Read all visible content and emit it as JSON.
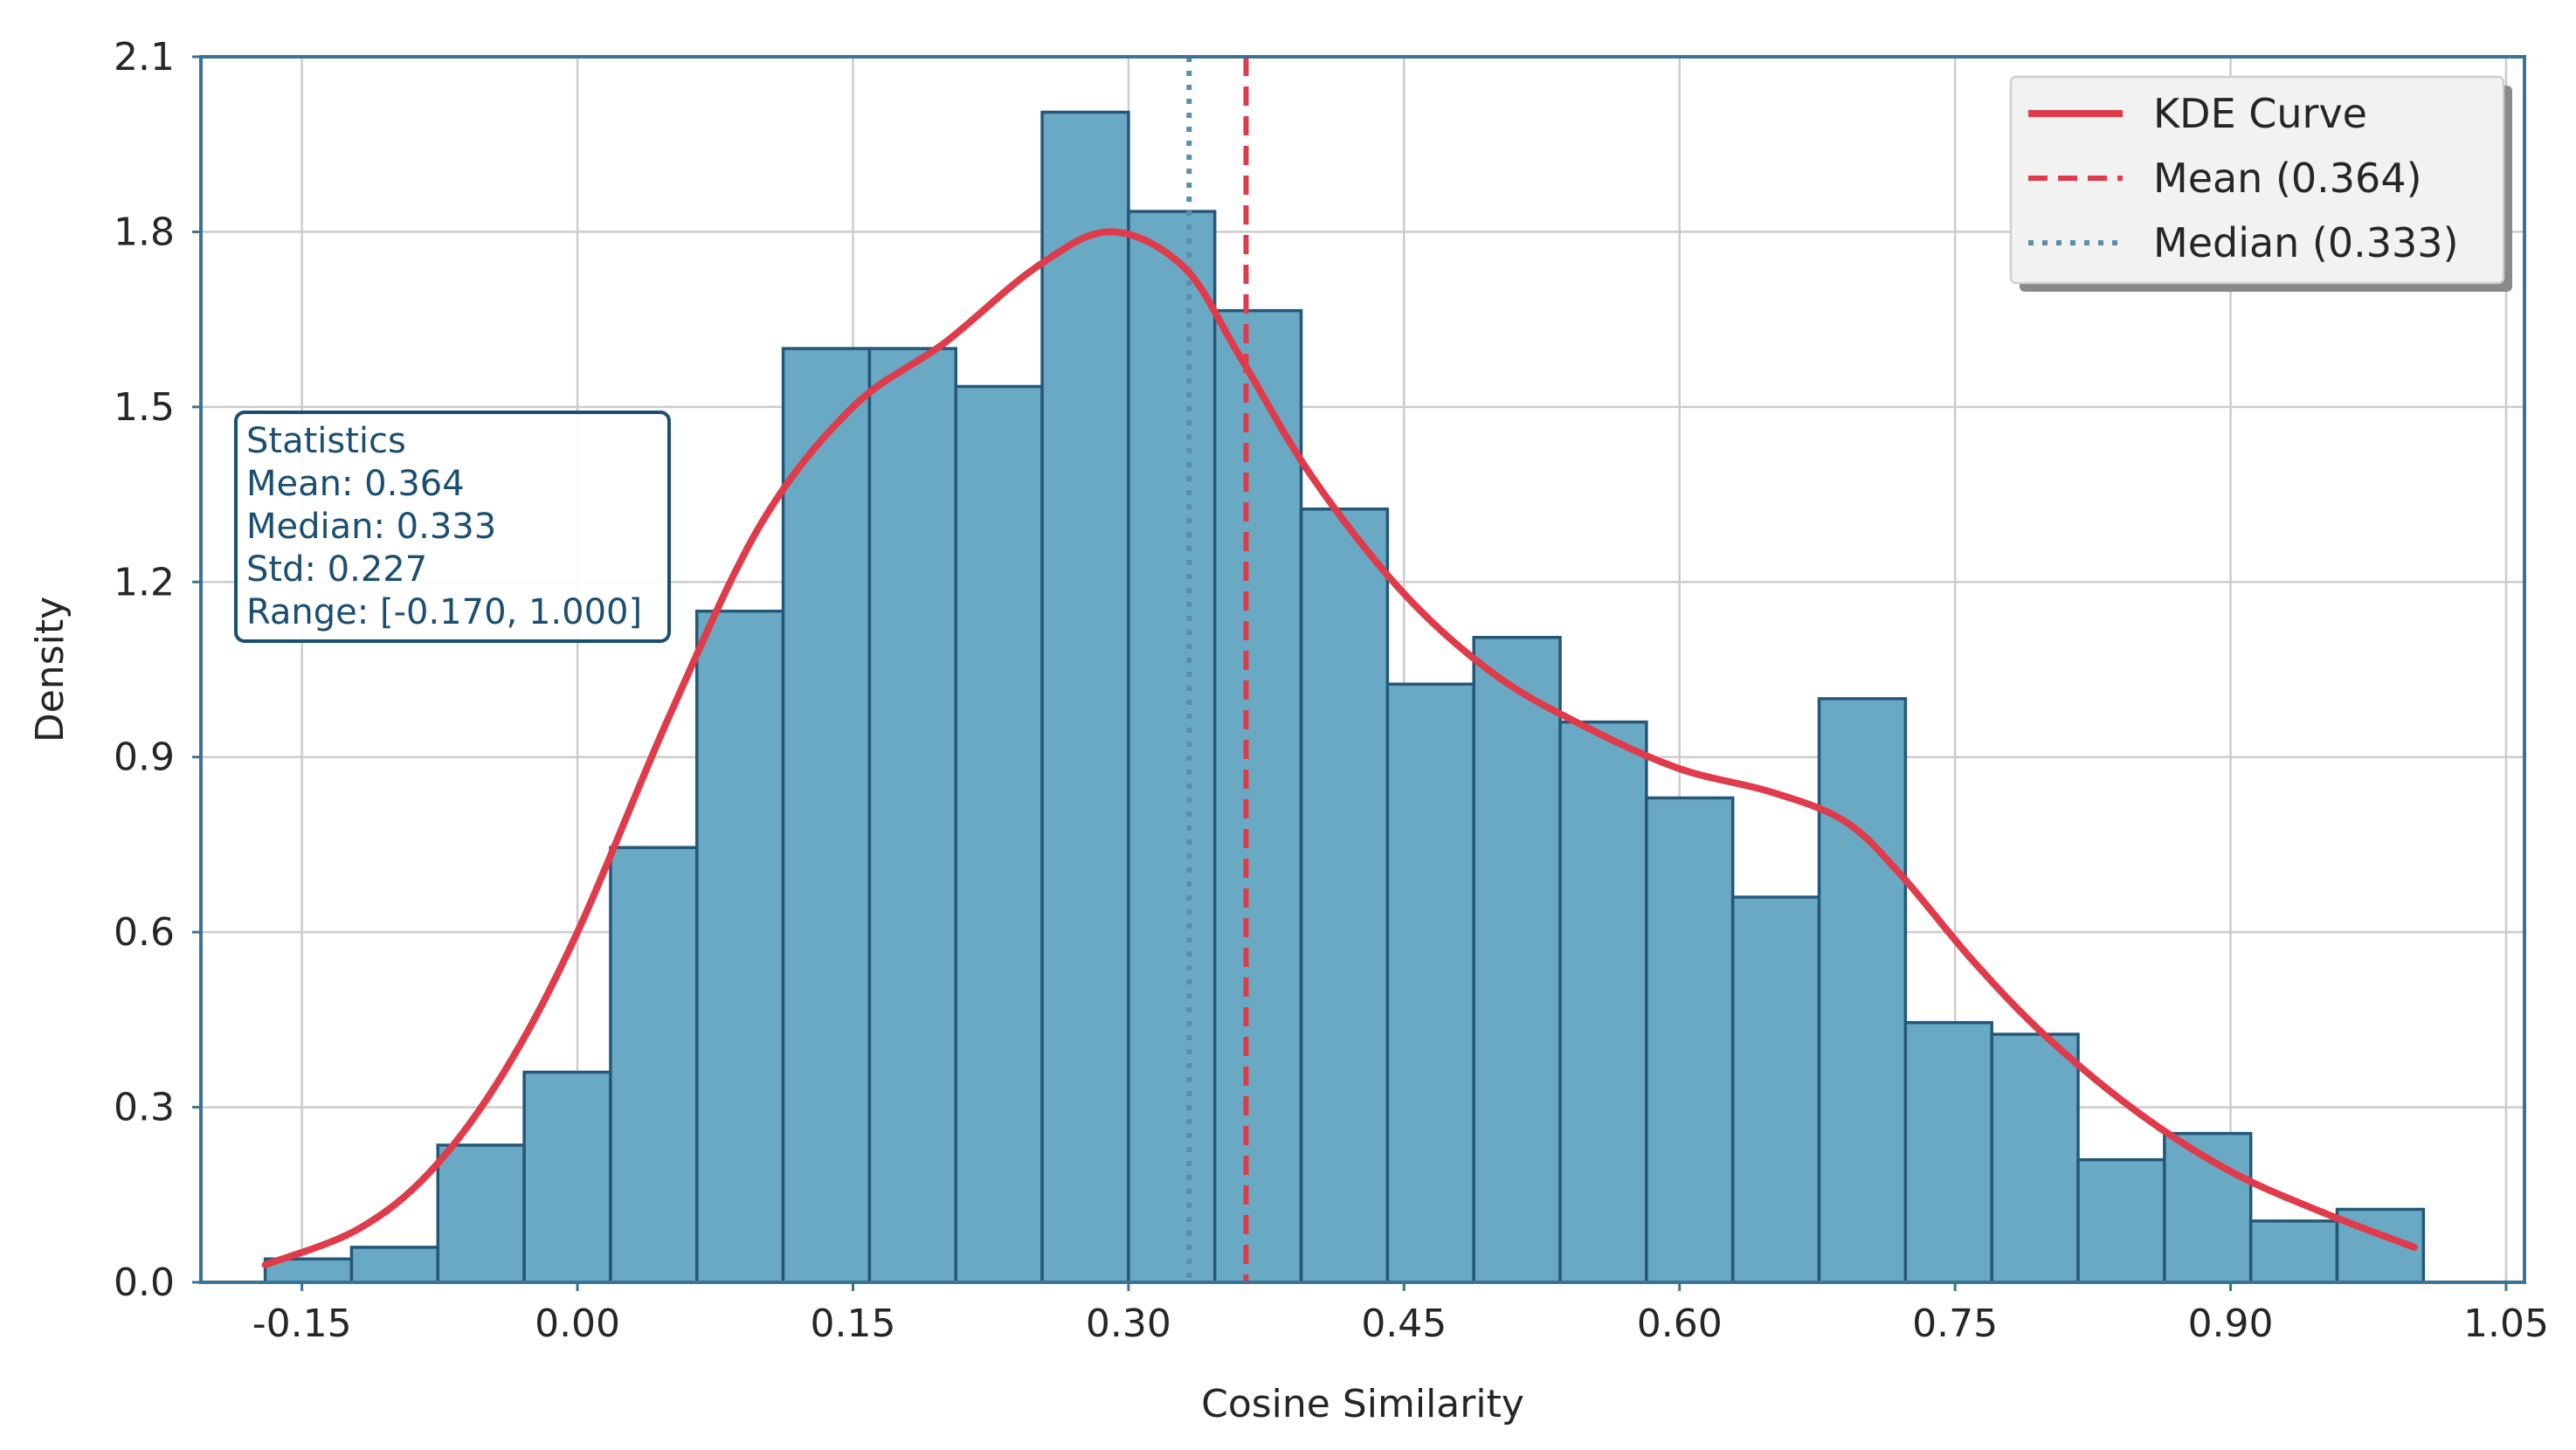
{
  "chart_data": {
    "type": "histogram",
    "title": "",
    "xlabel": "Cosine Similarity",
    "ylabel": "Density",
    "xlim": [
      -0.205,
      1.06
    ],
    "ylim": [
      0,
      2.1
    ],
    "xticks": [
      -0.15,
      0.0,
      0.15,
      0.3,
      0.45,
      0.6,
      0.75,
      0.9,
      1.05
    ],
    "xtick_labels": [
      "-0.15",
      "0.00",
      "0.15",
      "0.30",
      "0.45",
      "0.60",
      "0.75",
      "0.90",
      "1.05"
    ],
    "yticks": [
      0.0,
      0.3,
      0.6,
      0.9,
      1.2,
      1.5,
      1.8,
      2.1
    ],
    "ytick_labels": [
      "0.0",
      "0.3",
      "0.6",
      "0.9",
      "1.2",
      "1.5",
      "1.8",
      "2.1"
    ],
    "grid": true,
    "legend_position": "top-right",
    "bins": {
      "start": -0.17,
      "width": 0.047,
      "values": [
        0.04,
        0.06,
        0.235,
        0.36,
        0.745,
        1.15,
        1.6,
        1.6,
        1.535,
        2.005,
        1.835,
        1.665,
        1.325,
        1.025,
        1.105,
        0.96,
        0.83,
        0.66,
        1.0,
        0.445,
        0.425,
        0.21,
        0.255,
        0.105,
        0.125
      ]
    },
    "kde": {
      "name": "KDE Curve",
      "x": [
        -0.17,
        -0.12,
        -0.08,
        -0.04,
        0.0,
        0.05,
        0.1,
        0.15,
        0.2,
        0.25,
        0.29,
        0.33,
        0.36,
        0.4,
        0.45,
        0.5,
        0.55,
        0.6,
        0.65,
        0.69,
        0.72,
        0.76,
        0.8,
        0.85,
        0.9,
        0.95,
        1.0
      ],
      "y": [
        0.03,
        0.09,
        0.19,
        0.36,
        0.6,
        0.97,
        1.3,
        1.5,
        1.61,
        1.74,
        1.8,
        1.74,
        1.59,
        1.38,
        1.18,
        1.04,
        0.95,
        0.88,
        0.84,
        0.79,
        0.7,
        0.55,
        0.42,
        0.29,
        0.19,
        0.12,
        0.06
      ]
    },
    "mean": {
      "name": "Mean (0.364)",
      "value": 0.364
    },
    "median": {
      "name": "Median (0.333)",
      "value": 0.333
    },
    "statistics_box": {
      "title": "Statistics",
      "lines": [
        "Mean: 0.364",
        "Median: 0.333",
        "Std: 0.227",
        "Range: [-0.170, 1.000]"
      ]
    },
    "colors": {
      "bars": "#6aa9c4",
      "bar_edge": "#24587a",
      "kde": "#e03b4b",
      "mean": "#e03b4b",
      "median": "#5a8eab",
      "frame": "#3b7396",
      "grid": "#cccccc",
      "stats_text": "#1b4f72"
    }
  }
}
